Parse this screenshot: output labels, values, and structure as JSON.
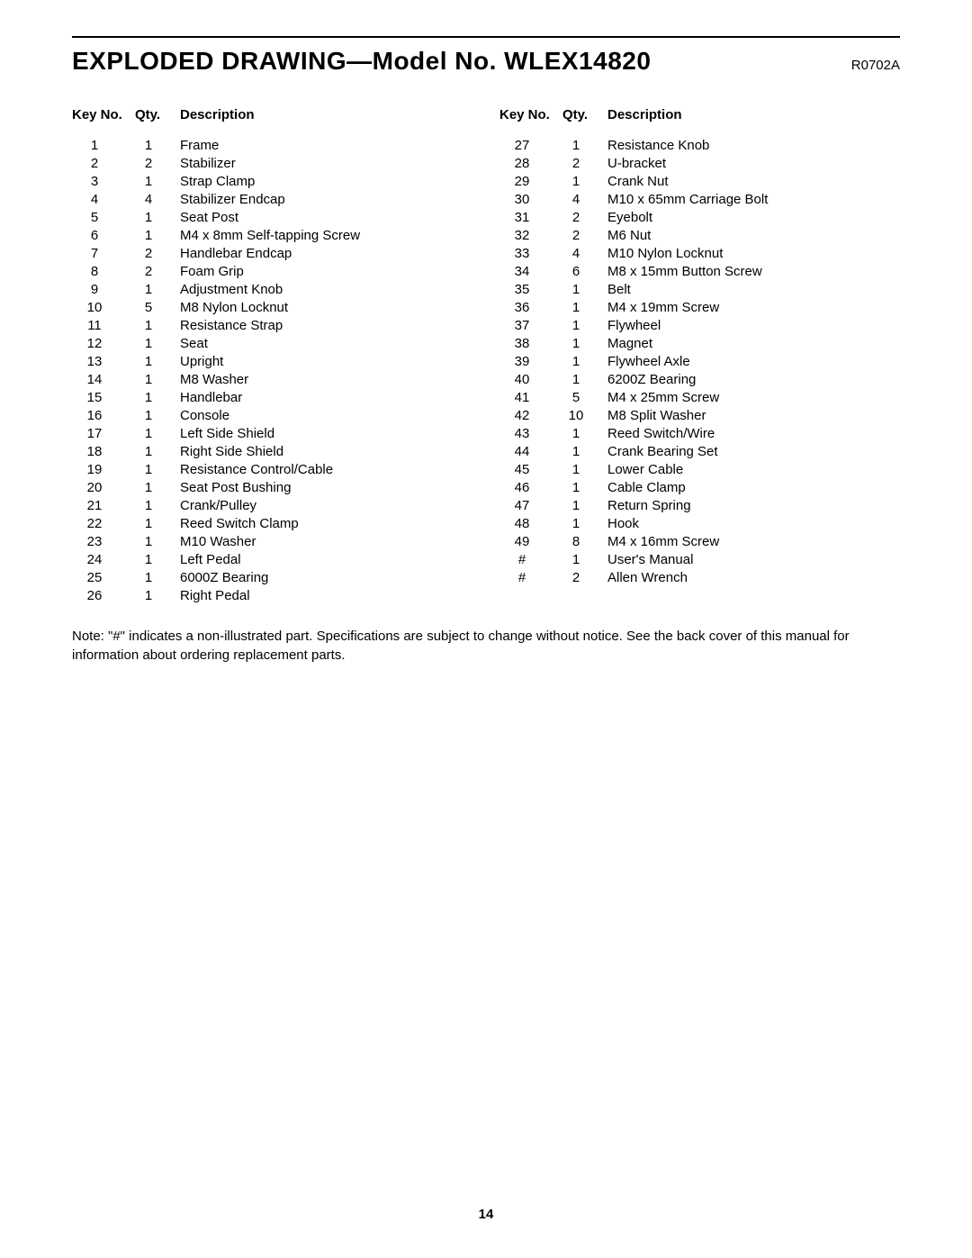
{
  "header": {
    "title": "EXPLODED DRAWING—Model No. WLEX14820",
    "revision": "R0702A"
  },
  "table": {
    "headers": {
      "key_no": "Key No.",
      "qty": "Qty.",
      "description": "Description"
    },
    "left_rows": [
      {
        "key": "1",
        "qty": "1",
        "desc": "Frame"
      },
      {
        "key": "2",
        "qty": "2",
        "desc": "Stabilizer"
      },
      {
        "key": "3",
        "qty": "1",
        "desc": "Strap Clamp"
      },
      {
        "key": "4",
        "qty": "4",
        "desc": "Stabilizer Endcap"
      },
      {
        "key": "5",
        "qty": "1",
        "desc": "Seat Post"
      },
      {
        "key": "6",
        "qty": "1",
        "desc": "M4 x 8mm Self-tapping Screw"
      },
      {
        "key": "7",
        "qty": "2",
        "desc": "Handlebar Endcap"
      },
      {
        "key": "8",
        "qty": "2",
        "desc": "Foam Grip"
      },
      {
        "key": "9",
        "qty": "1",
        "desc": "Adjustment Knob"
      },
      {
        "key": "10",
        "qty": "5",
        "desc": "M8 Nylon Locknut"
      },
      {
        "key": "11",
        "qty": "1",
        "desc": "Resistance Strap"
      },
      {
        "key": "12",
        "qty": "1",
        "desc": "Seat"
      },
      {
        "key": "13",
        "qty": "1",
        "desc": "Upright"
      },
      {
        "key": "14",
        "qty": "1",
        "desc": "M8 Washer"
      },
      {
        "key": "15",
        "qty": "1",
        "desc": "Handlebar"
      },
      {
        "key": "16",
        "qty": "1",
        "desc": "Console"
      },
      {
        "key": "17",
        "qty": "1",
        "desc": "Left Side Shield"
      },
      {
        "key": "18",
        "qty": "1",
        "desc": "Right Side Shield"
      },
      {
        "key": "19",
        "qty": "1",
        "desc": "Resistance Control/Cable"
      },
      {
        "key": "20",
        "qty": "1",
        "desc": "Seat Post Bushing"
      },
      {
        "key": "21",
        "qty": "1",
        "desc": "Crank/Pulley"
      },
      {
        "key": "22",
        "qty": "1",
        "desc": "Reed Switch Clamp"
      },
      {
        "key": "23",
        "qty": "1",
        "desc": "M10 Washer"
      },
      {
        "key": "24",
        "qty": "1",
        "desc": "Left Pedal"
      },
      {
        "key": "25",
        "qty": "1",
        "desc": "6000Z Bearing"
      },
      {
        "key": "26",
        "qty": "1",
        "desc": "Right Pedal"
      }
    ],
    "right_rows": [
      {
        "key": "27",
        "qty": "1",
        "desc": "Resistance Knob"
      },
      {
        "key": "28",
        "qty": "2",
        "desc": "U-bracket"
      },
      {
        "key": "29",
        "qty": "1",
        "desc": "Crank Nut"
      },
      {
        "key": "30",
        "qty": "4",
        "desc": "M10 x 65mm Carriage Bolt"
      },
      {
        "key": "31",
        "qty": "2",
        "desc": "Eyebolt"
      },
      {
        "key": "32",
        "qty": "2",
        "desc": "M6 Nut"
      },
      {
        "key": "33",
        "qty": "4",
        "desc": "M10 Nylon Locknut"
      },
      {
        "key": "34",
        "qty": "6",
        "desc": "M8 x 15mm Button Screw"
      },
      {
        "key": "35",
        "qty": "1",
        "desc": "Belt"
      },
      {
        "key": "36",
        "qty": "1",
        "desc": "M4 x 19mm Screw"
      },
      {
        "key": "37",
        "qty": "1",
        "desc": "Flywheel"
      },
      {
        "key": "38",
        "qty": "1",
        "desc": "Magnet"
      },
      {
        "key": "39",
        "qty": "1",
        "desc": "Flywheel Axle"
      },
      {
        "key": "40",
        "qty": "1",
        "desc": "6200Z Bearing"
      },
      {
        "key": "41",
        "qty": "5",
        "desc": "M4 x 25mm Screw"
      },
      {
        "key": "42",
        "qty": "10",
        "desc": "M8 Split Washer"
      },
      {
        "key": "43",
        "qty": "1",
        "desc": "Reed Switch/Wire"
      },
      {
        "key": "44",
        "qty": "1",
        "desc": "Crank Bearing Set"
      },
      {
        "key": "45",
        "qty": "1",
        "desc": "Lower Cable"
      },
      {
        "key": "46",
        "qty": "1",
        "desc": "Cable Clamp"
      },
      {
        "key": "47",
        "qty": "1",
        "desc": "Return Spring"
      },
      {
        "key": "48",
        "qty": "1",
        "desc": "Hook"
      },
      {
        "key": "49",
        "qty": "8",
        "desc": "M4 x 16mm Screw"
      },
      {
        "key": "#",
        "qty": "1",
        "desc": "User's Manual"
      },
      {
        "key": "#",
        "qty": "2",
        "desc": "Allen Wrench"
      }
    ]
  },
  "note": "Note: \"#\" indicates a non-illustrated part. Specifications are subject to change without notice. See the back cover of this manual for information about ordering replacement parts.",
  "page_number": "14"
}
